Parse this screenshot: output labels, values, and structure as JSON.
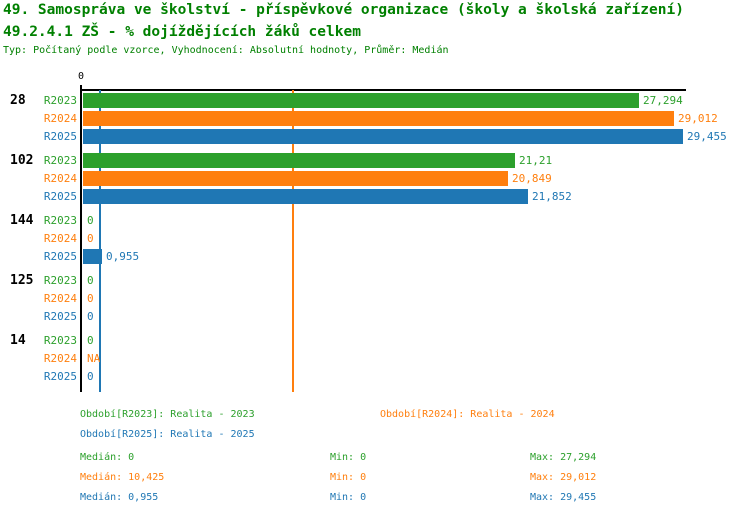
{
  "header": {
    "title_line1": "49. Samospráva ve školství - příspěvkové organizace (školy a školská zařízení)",
    "title_line2": "49.2.4.1 ZŠ - % dojíždějících žáků celkem",
    "subtitle": "Typ: Počítaný podle vzorce, Vyhodnocení: Absolutní hodnoty, Průměr: Medián",
    "title_color": "#008000"
  },
  "chart_data": {
    "type": "bar",
    "orientation": "horizontal",
    "value_unit": "%",
    "axis": {
      "origin_tick_label": "0",
      "x_min": 0,
      "x_max": 29.455,
      "grid": false
    },
    "series": [
      {
        "id": "R2023",
        "name": "Realita - 2023",
        "color": "#2ca02c",
        "median": 0,
        "min": 0,
        "max": 27.294
      },
      {
        "id": "R2024",
        "name": "Realita - 2024",
        "color": "#ff7f0e",
        "median": 10.425,
        "min": 0,
        "max": 29.012
      },
      {
        "id": "R2025",
        "name": "Realita - 2025",
        "color": "#1f77b4",
        "median": 0.955,
        "min": 0,
        "max": 29.455
      }
    ],
    "groups": [
      {
        "label": "28",
        "bars": [
          {
            "series": "R2023",
            "value": 27.294,
            "display": "27,294"
          },
          {
            "series": "R2024",
            "value": 29.012,
            "display": "29,012"
          },
          {
            "series": "R2025",
            "value": 29.455,
            "display": "29,455"
          }
        ]
      },
      {
        "label": "102",
        "bars": [
          {
            "series": "R2023",
            "value": 21.21,
            "display": "21,21"
          },
          {
            "series": "R2024",
            "value": 20.849,
            "display": "20,849"
          },
          {
            "series": "R2025",
            "value": 21.852,
            "display": "21,852"
          }
        ]
      },
      {
        "label": "144",
        "bars": [
          {
            "series": "R2023",
            "value": 0,
            "display": "0"
          },
          {
            "series": "R2024",
            "value": 0,
            "display": "0"
          },
          {
            "series": "R2025",
            "value": 0.955,
            "display": "0,955"
          }
        ]
      },
      {
        "label": "125",
        "bars": [
          {
            "series": "R2023",
            "value": 0,
            "display": "0"
          },
          {
            "series": "R2024",
            "value": 0,
            "display": "0"
          },
          {
            "series": "R2025",
            "value": 0,
            "display": "0"
          }
        ]
      },
      {
        "label": "14",
        "bars": [
          {
            "series": "R2023",
            "value": 0,
            "display": "0"
          },
          {
            "series": "R2024",
            "value": null,
            "display": "NA"
          },
          {
            "series": "R2025",
            "value": 0,
            "display": "0"
          }
        ]
      }
    ]
  },
  "legend": {
    "items": [
      {
        "series": "R2023",
        "label": "Období[R2023]: Realita - 2023"
      },
      {
        "series": "R2024",
        "label": "Období[R2024]: Realita - 2024"
      },
      {
        "series": "R2025",
        "label": "Období[R2025]: Realita - 2025"
      }
    ]
  },
  "stats": {
    "rows": [
      {
        "series": "R2023",
        "median": "Medián: 0",
        "min": "Min: 0",
        "max": "Max: 27,294"
      },
      {
        "series": "R2024",
        "median": "Medián: 10,425",
        "min": "Min: 0",
        "max": "Max: 29,012"
      },
      {
        "series": "R2025",
        "median": "Medián: 0,955",
        "min": "Min: 0",
        "max": "Max: 29,455"
      }
    ]
  }
}
